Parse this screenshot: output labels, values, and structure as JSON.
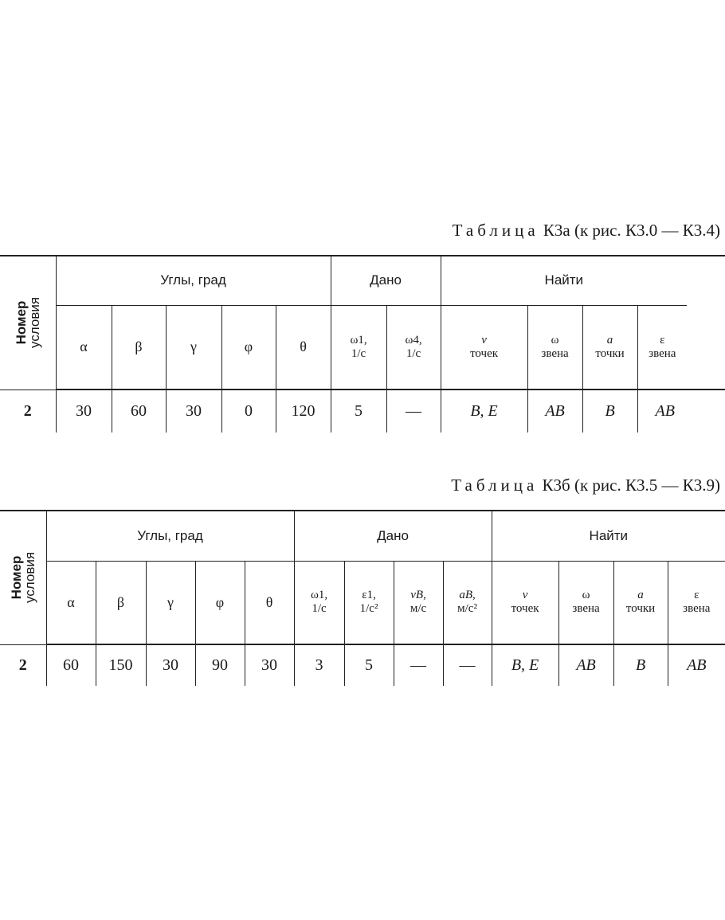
{
  "table_a": {
    "title_word": "Таблица",
    "title_rest": "К3а (к рис. К3.0 — К3.4)",
    "row_header": [
      "Номер",
      "условия"
    ],
    "groups": {
      "angles": "Углы, град",
      "given": "Дано",
      "find": "Найти"
    },
    "angle_cols": [
      "α",
      "β",
      "γ",
      "φ",
      "θ"
    ],
    "given_cols": [
      [
        "ω1,",
        "1/c"
      ],
      [
        "ω4,",
        "1/c"
      ]
    ],
    "find_cols": [
      [
        "v",
        "точек"
      ],
      [
        "ω",
        "звена"
      ],
      [
        "a",
        "точки"
      ],
      [
        "ε",
        "звена"
      ]
    ],
    "row": [
      "2",
      "30",
      "60",
      "30",
      "0",
      "120",
      "5",
      "—",
      "B, E",
      "AB",
      "B",
      "AB"
    ]
  },
  "table_b": {
    "title_word": "Таблица",
    "title_rest": "К3б (к рис. К3.5 — К3.9)",
    "row_header": [
      "Номер",
      "условия"
    ],
    "groups": {
      "angles": "Углы, град",
      "given": "Дано",
      "find": "Найти"
    },
    "angle_cols": [
      "α",
      "β",
      "γ",
      "φ",
      "θ"
    ],
    "given_cols": [
      [
        "ω1,",
        "1/c"
      ],
      [
        "ε1,",
        "1/c²"
      ],
      [
        "vB,",
        "м/c"
      ],
      [
        "aB,",
        "м/c²"
      ]
    ],
    "find_cols": [
      [
        "v",
        "точек"
      ],
      [
        "ω",
        "звена"
      ],
      [
        "a",
        "точки"
      ],
      [
        "ε",
        "звена"
      ]
    ],
    "row": [
      "2",
      "60",
      "150",
      "30",
      "90",
      "30",
      "3",
      "5",
      "—",
      "—",
      "B, E",
      "AB",
      "B",
      "AB"
    ]
  }
}
